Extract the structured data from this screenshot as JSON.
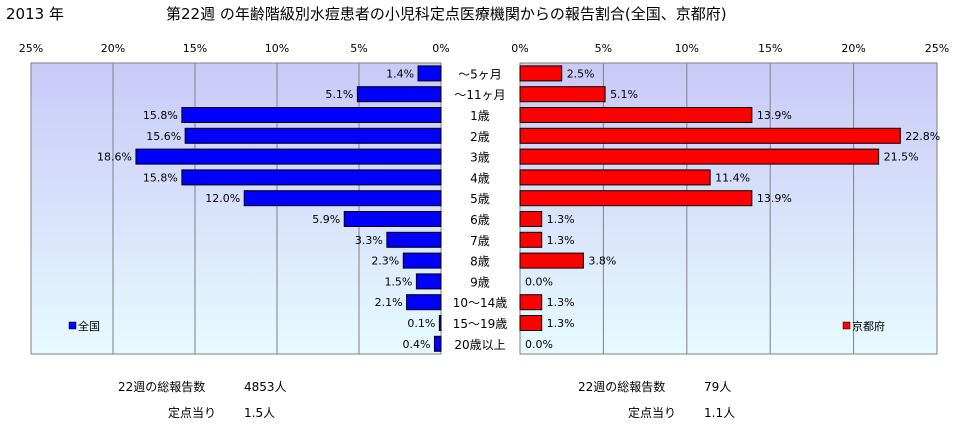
{
  "header": {
    "year": "2013 年",
    "title": "第22週 の年齢階級別水痘患者の小児科定点医療機関からの報告割合(全国、京都府)"
  },
  "colors": {
    "left_bar": "#0000ff",
    "right_bar": "#ff0000",
    "bar_stroke": "#000000"
  },
  "chart_data": {
    "type": "bar",
    "orientation": "horizontal",
    "layout": "back-to-back population pyramid",
    "categories": [
      "〜5ヶ月",
      "〜11ヶ月",
      "1歳",
      "2歳",
      "3歳",
      "4歳",
      "5歳",
      "6歳",
      "7歳",
      "8歳",
      "9歳",
      "10〜14歳",
      "15〜19歳",
      "20歳以上"
    ],
    "series": [
      {
        "name": "全国",
        "values": [
          1.4,
          5.1,
          15.8,
          15.6,
          18.6,
          15.8,
          12.0,
          5.9,
          3.3,
          2.3,
          1.5,
          2.1,
          0.1,
          0.4
        ],
        "labels": [
          "1.4%",
          "5.1%",
          "15.8%",
          "15.6%",
          "18.6%",
          "15.8%",
          "12.0%",
          "5.9%",
          "3.3%",
          "2.3%",
          "1.5%",
          "2.1%",
          "0.1%",
          "0.4%"
        ]
      },
      {
        "name": "京都府",
        "values": [
          2.5,
          5.1,
          13.9,
          22.8,
          21.5,
          11.4,
          13.9,
          1.3,
          1.3,
          3.8,
          0.0,
          1.3,
          1.3,
          0.0
        ],
        "labels": [
          "2.5%",
          "5.1%",
          "13.9%",
          "22.8%",
          "21.5%",
          "11.4%",
          "13.9%",
          "1.3%",
          "1.3%",
          "3.8%",
          "0.0%",
          "1.3%",
          "1.3%",
          "0.0%"
        ]
      }
    ],
    "xlim": [
      0,
      25
    ],
    "left_ticks": [
      "25%",
      "20%",
      "15%",
      "10%",
      "5%",
      "0%"
    ],
    "right_ticks": [
      "0%",
      "5%",
      "10%",
      "15%",
      "20%",
      "25%"
    ],
    "legend_left": "全国",
    "legend_right": "京都府",
    "grid": true
  },
  "stats": {
    "left": {
      "total_label": "22週の総報告数",
      "total_value": "4853人",
      "per_label": "定点当り",
      "per_value": "1.5人"
    },
    "right": {
      "total_label": "22週の総報告数",
      "total_value": "79人",
      "per_label": "定点当り",
      "per_value": "1.1人"
    }
  }
}
